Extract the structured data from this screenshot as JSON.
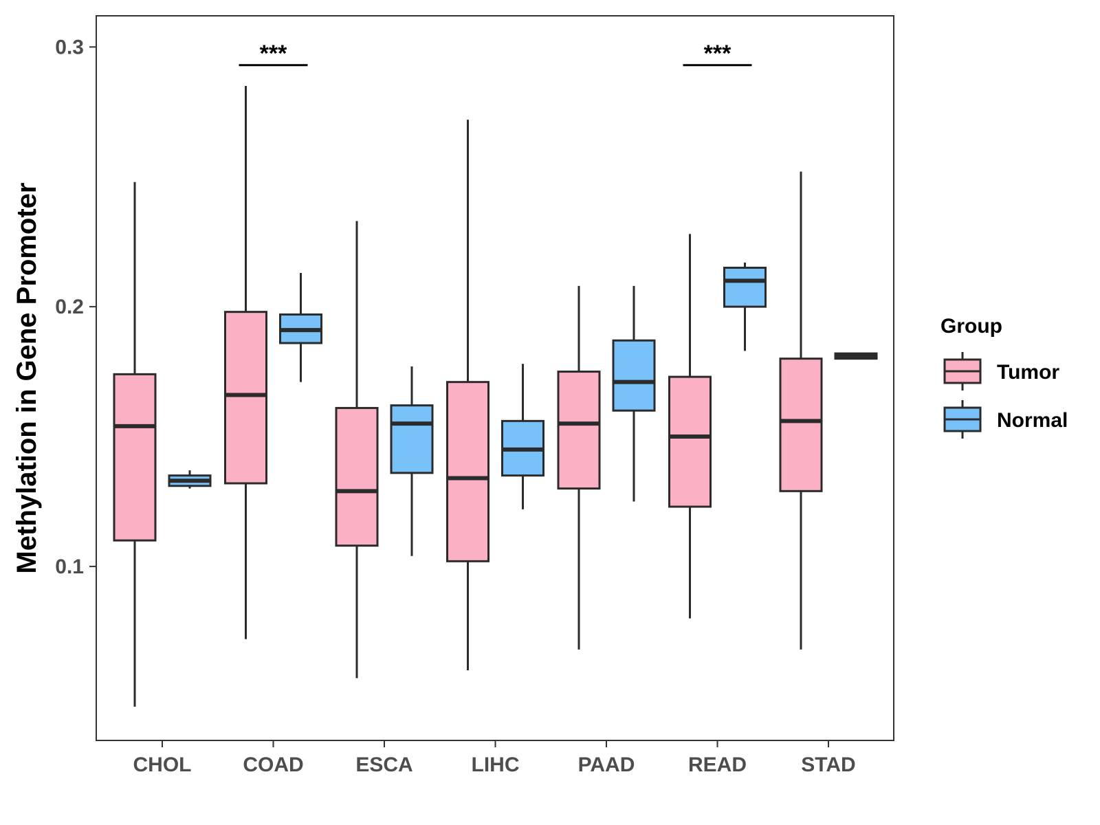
{
  "chart_data": {
    "type": "boxplot",
    "title": "",
    "xlabel": "",
    "ylabel": "Methylation in Gene Promoter",
    "ylim": [
      0.033,
      0.312
    ],
    "yticks": [
      0.1,
      0.2,
      0.3
    ],
    "ytick_labels": [
      "0.1",
      "0.2",
      "0.3"
    ],
    "grid": false,
    "categories": [
      "CHOL",
      "COAD",
      "ESCA",
      "LIHC",
      "PAAD",
      "READ",
      "STAD"
    ],
    "legend": {
      "title": "Group",
      "position": "right",
      "entries": [
        {
          "label": "Tumor",
          "color": "#FBB1C3"
        },
        {
          "label": "Normal",
          "color": "#79C1F9"
        }
      ]
    },
    "series": [
      {
        "name": "Tumor",
        "color": "#FBB1C3",
        "boxes": [
          {
            "category": "CHOL",
            "min": 0.046,
            "q1": 0.11,
            "median": 0.154,
            "q3": 0.174,
            "max": 0.248
          },
          {
            "category": "COAD",
            "min": 0.072,
            "q1": 0.132,
            "median": 0.166,
            "q3": 0.198,
            "max": 0.285
          },
          {
            "category": "ESCA",
            "min": 0.057,
            "q1": 0.108,
            "median": 0.129,
            "q3": 0.161,
            "max": 0.233
          },
          {
            "category": "LIHC",
            "min": 0.06,
            "q1": 0.102,
            "median": 0.134,
            "q3": 0.171,
            "max": 0.272
          },
          {
            "category": "PAAD",
            "min": 0.068,
            "q1": 0.13,
            "median": 0.155,
            "q3": 0.175,
            "max": 0.208
          },
          {
            "category": "READ",
            "min": 0.08,
            "q1": 0.123,
            "median": 0.15,
            "q3": 0.173,
            "max": 0.228
          },
          {
            "category": "STAD",
            "min": 0.068,
            "q1": 0.129,
            "median": 0.156,
            "q3": 0.18,
            "max": 0.252
          }
        ]
      },
      {
        "name": "Normal",
        "color": "#79C1F9",
        "boxes": [
          {
            "category": "CHOL",
            "min": 0.13,
            "q1": 0.131,
            "median": 0.133,
            "q3": 0.135,
            "max": 0.137
          },
          {
            "category": "COAD",
            "min": 0.171,
            "q1": 0.186,
            "median": 0.191,
            "q3": 0.197,
            "max": 0.213
          },
          {
            "category": "ESCA",
            "min": 0.104,
            "q1": 0.136,
            "median": 0.155,
            "q3": 0.162,
            "max": 0.177
          },
          {
            "category": "LIHC",
            "min": 0.122,
            "q1": 0.135,
            "median": 0.145,
            "q3": 0.156,
            "max": 0.178
          },
          {
            "category": "PAAD",
            "min": 0.125,
            "q1": 0.16,
            "median": 0.171,
            "q3": 0.187,
            "max": 0.208
          },
          {
            "category": "READ",
            "min": 0.183,
            "q1": 0.2,
            "median": 0.21,
            "q3": 0.215,
            "max": 0.217
          },
          {
            "category": "STAD",
            "min": 0.18,
            "q1": 0.18,
            "median": 0.181,
            "q3": 0.182,
            "max": 0.182
          }
        ]
      }
    ],
    "annotations": [
      {
        "category": "COAD",
        "label": "***",
        "y": 0.293
      },
      {
        "category": "READ",
        "label": "***",
        "y": 0.293
      }
    ]
  }
}
